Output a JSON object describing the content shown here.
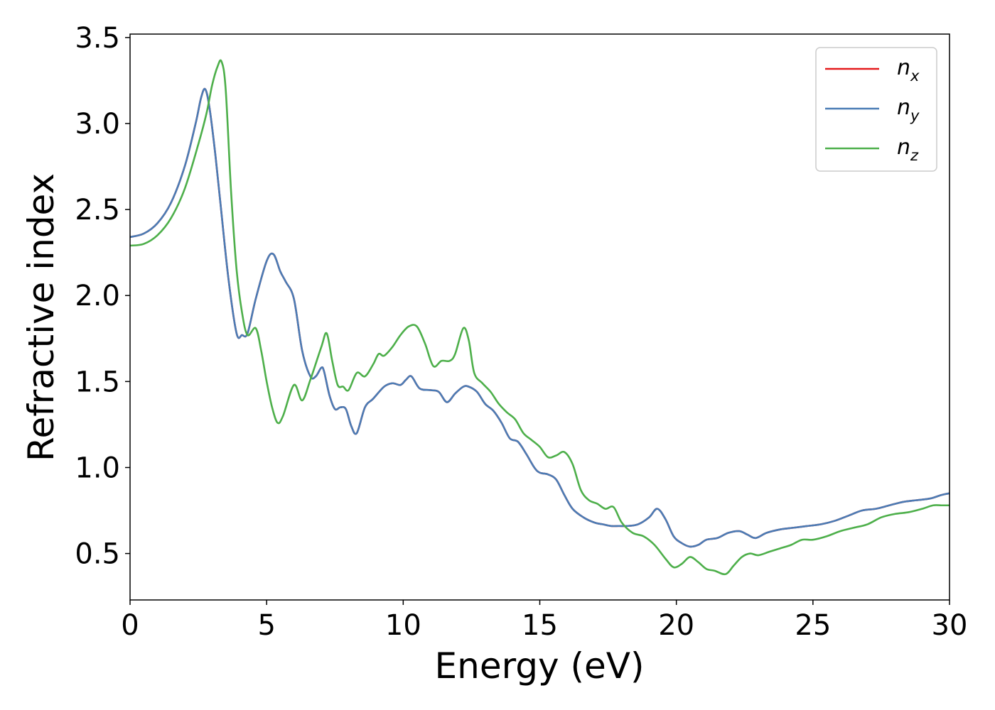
{
  "chart_data": {
    "type": "line",
    "xlabel": "Energy (eV)",
    "ylabel": "Refractive index",
    "xlim": [
      0,
      30
    ],
    "ylim": [
      0.23,
      3.52
    ],
    "xticks": [
      0,
      5,
      10,
      15,
      20,
      25,
      30
    ],
    "xtick_labels": [
      "0",
      "5",
      "10",
      "15",
      "20",
      "25",
      "30"
    ],
    "yticks": [
      0.5,
      1.0,
      1.5,
      2.0,
      2.5,
      3.0,
      3.5
    ],
    "ytick_labels": [
      "0.5",
      "1.0",
      "1.5",
      "2.0",
      "2.5",
      "3.0",
      "3.5"
    ],
    "grid": false,
    "legend_position": "top-right",
    "series": [
      {
        "name": "n_x",
        "label_base": "n",
        "label_sub": "x",
        "color": "#e41a1c",
        "x": [
          0,
          0.5,
          1,
          1.5,
          2,
          2.4,
          2.6,
          2.75,
          2.9,
          3.1,
          3.3,
          3.6,
          3.9,
          4.1,
          4.3,
          4.6,
          5.0,
          5.25,
          5.5,
          5.7,
          6.0,
          6.3,
          6.6,
          6.8,
          7.0,
          7.1,
          7.3,
          7.5,
          7.7,
          7.9,
          8.1,
          8.3,
          8.6,
          8.9,
          9.3,
          9.6,
          9.9,
          10.1,
          10.3,
          10.6,
          11.0,
          11.3,
          11.6,
          11.9,
          12.2,
          12.4,
          12.7,
          13.0,
          13.3,
          13.6,
          13.9,
          14.2,
          14.5,
          14.8,
          15.0,
          15.3,
          15.6,
          15.9,
          16.2,
          16.6,
          17.0,
          17.3,
          17.6,
          17.9,
          18.2,
          18.6,
          19.0,
          19.3,
          19.6,
          19.9,
          20.2,
          20.5,
          20.8,
          21.1,
          21.5,
          21.9,
          22.3,
          22.6,
          22.9,
          23.3,
          23.8,
          24.3,
          24.8,
          25.3,
          25.8,
          26.3,
          26.8,
          27.3,
          27.8,
          28.3,
          28.8,
          29.3,
          29.7,
          30.0
        ],
        "y": [
          2.34,
          2.36,
          2.42,
          2.54,
          2.75,
          3.0,
          3.15,
          3.2,
          3.1,
          2.85,
          2.55,
          2.1,
          1.78,
          1.77,
          1.78,
          1.98,
          2.2,
          2.24,
          2.14,
          2.08,
          1.98,
          1.68,
          1.53,
          1.53,
          1.58,
          1.56,
          1.42,
          1.34,
          1.35,
          1.34,
          1.24,
          1.2,
          1.35,
          1.4,
          1.47,
          1.49,
          1.48,
          1.51,
          1.53,
          1.46,
          1.45,
          1.44,
          1.38,
          1.43,
          1.47,
          1.47,
          1.44,
          1.37,
          1.33,
          1.26,
          1.17,
          1.15,
          1.08,
          1.0,
          0.97,
          0.96,
          0.93,
          0.84,
          0.76,
          0.71,
          0.68,
          0.67,
          0.66,
          0.66,
          0.66,
          0.67,
          0.71,
          0.76,
          0.7,
          0.6,
          0.56,
          0.54,
          0.55,
          0.58,
          0.59,
          0.62,
          0.63,
          0.61,
          0.59,
          0.62,
          0.64,
          0.65,
          0.66,
          0.67,
          0.69,
          0.72,
          0.75,
          0.76,
          0.78,
          0.8,
          0.81,
          0.82,
          0.84,
          0.85
        ]
      },
      {
        "name": "n_y",
        "label_base": "n",
        "label_sub": "y",
        "color": "#4a7cb5",
        "x": [
          0,
          0.5,
          1,
          1.5,
          2,
          2.4,
          2.6,
          2.75,
          2.9,
          3.1,
          3.3,
          3.6,
          3.9,
          4.1,
          4.3,
          4.6,
          5.0,
          5.25,
          5.5,
          5.7,
          6.0,
          6.3,
          6.6,
          6.8,
          7.0,
          7.1,
          7.3,
          7.5,
          7.7,
          7.9,
          8.1,
          8.3,
          8.6,
          8.9,
          9.3,
          9.6,
          9.9,
          10.1,
          10.3,
          10.6,
          11.0,
          11.3,
          11.6,
          11.9,
          12.2,
          12.4,
          12.7,
          13.0,
          13.3,
          13.6,
          13.9,
          14.2,
          14.5,
          14.8,
          15.0,
          15.3,
          15.6,
          15.9,
          16.2,
          16.6,
          17.0,
          17.3,
          17.6,
          17.9,
          18.2,
          18.6,
          19.0,
          19.3,
          19.6,
          19.9,
          20.2,
          20.5,
          20.8,
          21.1,
          21.5,
          21.9,
          22.3,
          22.6,
          22.9,
          23.3,
          23.8,
          24.3,
          24.8,
          25.3,
          25.8,
          26.3,
          26.8,
          27.3,
          27.8,
          28.3,
          28.8,
          29.3,
          29.7,
          30.0
        ],
        "y": [
          2.34,
          2.36,
          2.42,
          2.54,
          2.75,
          3.0,
          3.15,
          3.2,
          3.1,
          2.85,
          2.55,
          2.1,
          1.78,
          1.77,
          1.78,
          1.98,
          2.2,
          2.24,
          2.14,
          2.08,
          1.98,
          1.68,
          1.53,
          1.53,
          1.58,
          1.56,
          1.42,
          1.34,
          1.35,
          1.34,
          1.24,
          1.2,
          1.35,
          1.4,
          1.47,
          1.49,
          1.48,
          1.51,
          1.53,
          1.46,
          1.45,
          1.44,
          1.38,
          1.43,
          1.47,
          1.47,
          1.44,
          1.37,
          1.33,
          1.26,
          1.17,
          1.15,
          1.08,
          1.0,
          0.97,
          0.96,
          0.93,
          0.84,
          0.76,
          0.71,
          0.68,
          0.67,
          0.66,
          0.66,
          0.66,
          0.67,
          0.71,
          0.76,
          0.7,
          0.6,
          0.56,
          0.54,
          0.55,
          0.58,
          0.59,
          0.62,
          0.63,
          0.61,
          0.59,
          0.62,
          0.64,
          0.65,
          0.66,
          0.67,
          0.69,
          0.72,
          0.75,
          0.76,
          0.78,
          0.8,
          0.81,
          0.82,
          0.84,
          0.85
        ]
      },
      {
        "name": "n_z",
        "label_base": "n",
        "label_sub": "z",
        "color": "#4daf4a",
        "x": [
          0,
          0.5,
          1,
          1.5,
          2,
          2.5,
          2.8,
          3.0,
          3.2,
          3.35,
          3.5,
          3.7,
          3.9,
          4.1,
          4.3,
          4.6,
          4.8,
          5.0,
          5.2,
          5.4,
          5.6,
          6.0,
          6.3,
          6.6,
          7.0,
          7.2,
          7.4,
          7.6,
          7.8,
          8.0,
          8.3,
          8.6,
          8.9,
          9.1,
          9.3,
          9.6,
          9.9,
          10.2,
          10.5,
          10.8,
          11.1,
          11.4,
          11.7,
          11.9,
          12.2,
          12.4,
          12.6,
          12.9,
          13.2,
          13.5,
          13.8,
          14.1,
          14.4,
          14.7,
          15.0,
          15.3,
          15.6,
          15.9,
          16.2,
          16.5,
          16.8,
          17.1,
          17.4,
          17.7,
          18.0,
          18.4,
          18.8,
          19.2,
          19.6,
          19.9,
          20.2,
          20.5,
          20.8,
          21.1,
          21.4,
          21.8,
          22.1,
          22.4,
          22.7,
          23.0,
          23.4,
          23.8,
          24.2,
          24.6,
          25.0,
          25.5,
          26.0,
          26.5,
          27.0,
          27.5,
          28.0,
          28.5,
          29.0,
          29.4,
          29.7,
          30.0
        ],
        "y": [
          2.29,
          2.3,
          2.35,
          2.45,
          2.62,
          2.88,
          3.06,
          3.22,
          3.33,
          3.36,
          3.2,
          2.6,
          2.15,
          1.9,
          1.77,
          1.81,
          1.68,
          1.5,
          1.35,
          1.26,
          1.3,
          1.48,
          1.39,
          1.51,
          1.7,
          1.78,
          1.62,
          1.48,
          1.47,
          1.45,
          1.55,
          1.53,
          1.6,
          1.66,
          1.65,
          1.7,
          1.77,
          1.82,
          1.82,
          1.72,
          1.59,
          1.62,
          1.62,
          1.66,
          1.81,
          1.74,
          1.55,
          1.49,
          1.44,
          1.37,
          1.32,
          1.28,
          1.2,
          1.16,
          1.12,
          1.06,
          1.07,
          1.09,
          1.02,
          0.87,
          0.81,
          0.79,
          0.76,
          0.77,
          0.68,
          0.62,
          0.6,
          0.55,
          0.47,
          0.42,
          0.44,
          0.48,
          0.45,
          0.41,
          0.4,
          0.38,
          0.43,
          0.48,
          0.5,
          0.49,
          0.51,
          0.53,
          0.55,
          0.58,
          0.58,
          0.6,
          0.63,
          0.65,
          0.67,
          0.71,
          0.73,
          0.74,
          0.76,
          0.78,
          0.78,
          0.78
        ]
      }
    ]
  }
}
